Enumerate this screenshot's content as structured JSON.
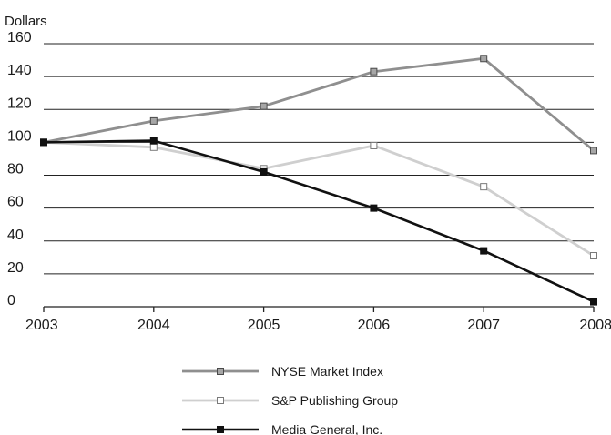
{
  "chart_data": {
    "type": "line",
    "ylabel": "Dollars",
    "xlabel": "",
    "title": "",
    "x": [
      "2003",
      "2004",
      "2005",
      "2006",
      "2007",
      "2008"
    ],
    "ylim": [
      0,
      160
    ],
    "yticks": [
      0,
      20,
      40,
      60,
      80,
      100,
      120,
      140,
      160
    ],
    "grid": "horizontal",
    "legend": "bottom",
    "series": [
      {
        "name": "NYSE Market Index",
        "values": [
          100,
          113,
          122,
          143,
          151,
          95
        ],
        "color": "#8f8f8f",
        "marker": "square-filled"
      },
      {
        "name": "S&P Publishing Group",
        "values": [
          100,
          97,
          84,
          98,
          73,
          31
        ],
        "color": "#cfcfcf",
        "marker": "square-open"
      },
      {
        "name": "Media General, Inc.",
        "values": [
          100,
          101,
          82,
          60,
          34,
          3
        ],
        "color": "#111111",
        "marker": "square-filled"
      }
    ]
  }
}
